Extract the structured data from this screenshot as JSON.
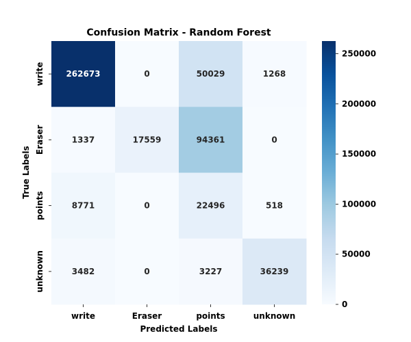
{
  "chart_data": {
    "type": "heatmap",
    "title": "Confusion Matrix - Random Forest",
    "xlabel": "Predicted Labels",
    "ylabel": "True Labels",
    "x_categories": [
      "write",
      "Eraser",
      "points",
      "unknown"
    ],
    "y_categories": [
      "write",
      "Eraser",
      "points",
      "unknown"
    ],
    "values": [
      [
        262673,
        0,
        50029,
        1268
      ],
      [
        1337,
        17559,
        94361,
        0
      ],
      [
        8771,
        0,
        22496,
        518
      ],
      [
        3482,
        0,
        3227,
        36239
      ]
    ],
    "colorbar": {
      "min": 0,
      "max": 262673,
      "ticks": [
        0,
        50000,
        100000,
        150000,
        200000,
        250000
      ],
      "colormap": "Blues"
    },
    "grid": false
  }
}
